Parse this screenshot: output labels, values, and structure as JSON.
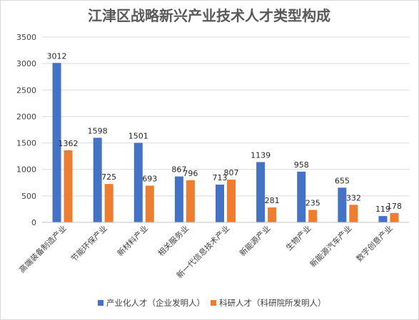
{
  "chart_data": {
    "type": "bar",
    "title": "江津区战略新兴产业技术人才类型构成",
    "xlabel": "",
    "ylabel": "",
    "categories": [
      "高端装备制造产业",
      "节能环保产业",
      "新材料产业",
      "相关服务业",
      "新一代信息技术产业",
      "新能源产业",
      "生物产业",
      "新能源汽车产业",
      "数字创意产业"
    ],
    "series": [
      {
        "name": "产业化人才（企业发明人）",
        "color": "#4472c4",
        "values": [
          3012,
          1598,
          1501,
          867,
          713,
          1139,
          958,
          655,
          119
        ]
      },
      {
        "name": "科研人才（科研院所发明人）",
        "color": "#ed7d31",
        "values": [
          1362,
          725,
          693,
          796,
          807,
          281,
          235,
          332,
          178
        ]
      }
    ],
    "ylim": [
      0,
      3500
    ],
    "yticks": [
      0,
      500,
      1000,
      1500,
      2000,
      2500,
      3000,
      3500
    ],
    "grid": true,
    "legend_position": "bottom",
    "data_labels": true
  }
}
